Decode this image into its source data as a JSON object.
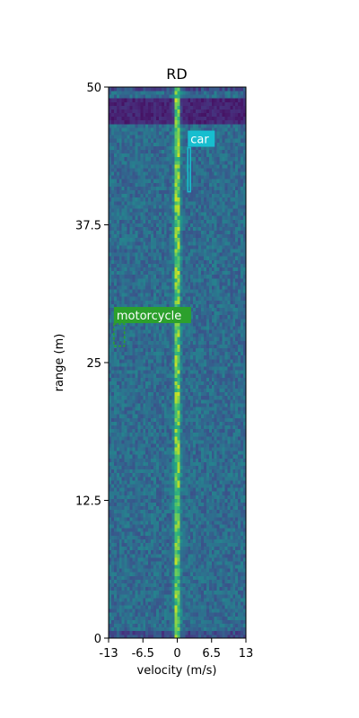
{
  "chart_data": {
    "type": "heatmap",
    "title": "RD",
    "xlabel": "velocity (m/s)",
    "ylabel": "range (m)",
    "xlim": [
      -13,
      13
    ],
    "ylim": [
      0,
      50
    ],
    "x_ticks": [
      -13,
      -6.5,
      0,
      6.5,
      13
    ],
    "x_tick_labels": [
      "-13",
      "-6.5",
      "0",
      "6.5",
      "13"
    ],
    "y_ticks": [
      0,
      12.5,
      25,
      37.5,
      50
    ],
    "y_tick_labels": [
      "0",
      "12.5",
      "25",
      "37.5",
      "50"
    ],
    "colormap": "viridis",
    "grid": false,
    "features": {
      "background_level": 0.35,
      "zero_velocity_line": {
        "velocity": 0,
        "level": 0.75
      },
      "low_intensity_band": {
        "range_from": 46.5,
        "range_to": 49,
        "level": 0.05
      }
    },
    "annotations": [
      {
        "label": "car",
        "color": "#17becf",
        "velocity_range": [
          2.0,
          2.5
        ],
        "range_range": [
          40.5,
          44.5
        ],
        "box_style": "solid"
      },
      {
        "label": "motorcycle",
        "color": "#2ca02c",
        "velocity_range": [
          -12.0,
          -10.0
        ],
        "range_range": [
          26.5,
          28.5
        ],
        "box_style": "dashed"
      }
    ]
  }
}
